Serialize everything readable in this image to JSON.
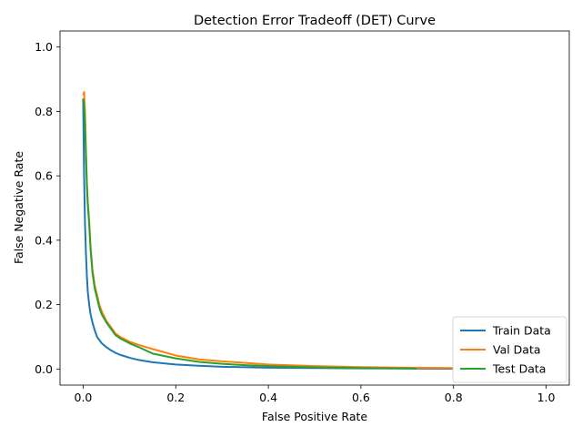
{
  "chart_data": {
    "type": "line",
    "title": "Detection Error Tradeoff (DET) Curve",
    "xlabel": "False Positive Rate",
    "ylabel": "False Negative Rate",
    "xlim": [
      -0.05,
      1.05
    ],
    "ylim": [
      -0.05,
      1.05
    ],
    "xticks": [
      0.0,
      0.2,
      0.4,
      0.6,
      0.8,
      1.0
    ],
    "yticks": [
      0.0,
      0.2,
      0.4,
      0.6,
      0.8,
      1.0
    ],
    "xtick_labels": [
      "0.0",
      "0.2",
      "0.4",
      "0.6",
      "0.8",
      "1.0"
    ],
    "ytick_labels": [
      "0.0",
      "0.2",
      "0.4",
      "0.6",
      "0.8",
      "1.0"
    ],
    "grid": false,
    "legend_position": "lower-right",
    "series": [
      {
        "name": "Train Data",
        "color": "#1f77b4",
        "x": [
          0.0,
          0.002,
          0.004,
          0.006,
          0.008,
          0.01,
          0.013,
          0.016,
          0.02,
          0.025,
          0.03,
          0.04,
          0.05,
          0.06,
          0.07,
          0.08,
          0.1,
          0.12,
          0.15,
          0.2,
          0.25,
          0.3,
          0.4,
          0.5,
          0.6,
          0.7,
          0.8
        ],
        "y": [
          0.84,
          0.6,
          0.45,
          0.36,
          0.29,
          0.24,
          0.2,
          0.17,
          0.145,
          0.12,
          0.1,
          0.08,
          0.068,
          0.058,
          0.05,
          0.044,
          0.035,
          0.028,
          0.021,
          0.014,
          0.01,
          0.007,
          0.004,
          0.003,
          0.002,
          0.0015,
          0.001
        ]
      },
      {
        "name": "Val Data",
        "color": "#ff7f0e",
        "x": [
          0.0,
          0.002,
          0.004,
          0.006,
          0.008,
          0.01,
          0.013,
          0.016,
          0.02,
          0.025,
          0.03,
          0.035,
          0.04,
          0.05,
          0.06,
          0.07,
          0.08,
          0.1,
          0.12,
          0.15,
          0.2,
          0.25,
          0.3,
          0.35,
          0.4,
          0.5,
          0.6,
          0.7,
          0.8
        ],
        "y": [
          0.85,
          0.86,
          0.8,
          0.68,
          0.58,
          0.52,
          0.46,
          0.38,
          0.31,
          0.26,
          0.23,
          0.2,
          0.18,
          0.15,
          0.13,
          0.11,
          0.1,
          0.085,
          0.075,
          0.062,
          0.042,
          0.03,
          0.024,
          0.019,
          0.014,
          0.009,
          0.006,
          0.004,
          0.003
        ]
      },
      {
        "name": "Test Data",
        "color": "#2ca02c",
        "x": [
          0.0,
          0.002,
          0.004,
          0.006,
          0.008,
          0.01,
          0.013,
          0.016,
          0.02,
          0.025,
          0.03,
          0.035,
          0.04,
          0.05,
          0.06,
          0.07,
          0.08,
          0.1,
          0.12,
          0.15,
          0.2,
          0.25,
          0.3,
          0.35,
          0.4,
          0.5,
          0.6,
          0.7,
          0.72
        ],
        "y": [
          0.84,
          0.82,
          0.76,
          0.66,
          0.57,
          0.51,
          0.45,
          0.37,
          0.3,
          0.25,
          0.22,
          0.19,
          0.17,
          0.145,
          0.125,
          0.105,
          0.095,
          0.08,
          0.068,
          0.048,
          0.033,
          0.022,
          0.016,
          0.012,
          0.009,
          0.005,
          0.003,
          0.0015,
          0.001
        ]
      }
    ]
  }
}
